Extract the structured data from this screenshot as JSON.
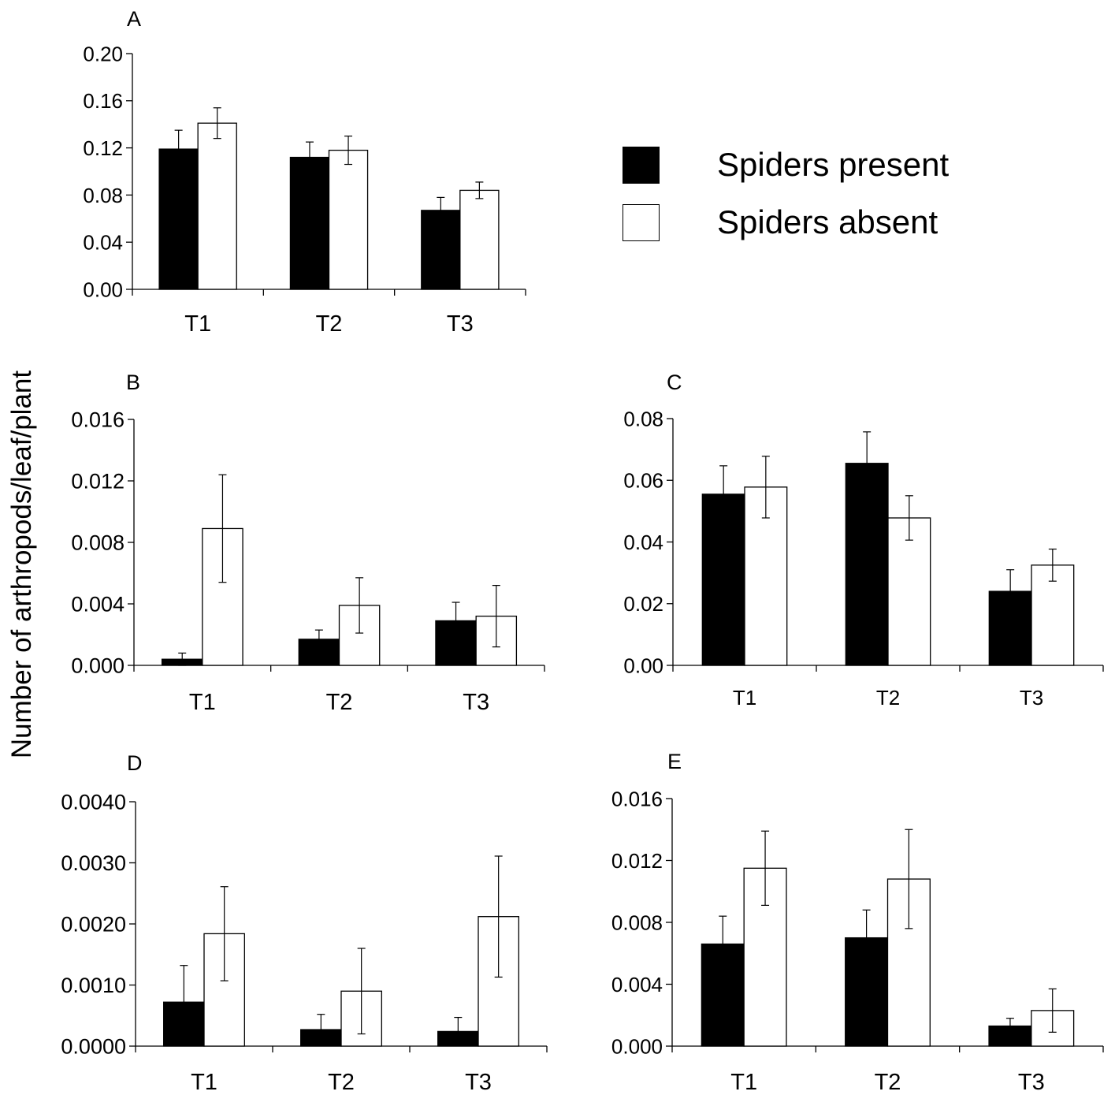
{
  "ylabel": "Number of arthropods/leaf/plant",
  "legend": {
    "items": [
      {
        "label": "Spiders present",
        "color": "#000000"
      },
      {
        "label": "Spiders absent",
        "color": "#ffffff"
      }
    ]
  },
  "chart_data": [
    {
      "type": "bar",
      "panel": "A",
      "categories": [
        "T1",
        "T2",
        "T3"
      ],
      "series": [
        {
          "name": "Spiders present",
          "values": [
            0.119,
            0.112,
            0.067
          ],
          "errors": [
            0.016,
            0.013,
            0.011
          ]
        },
        {
          "name": "Spiders absent",
          "values": [
            0.141,
            0.118,
            0.084
          ],
          "errors": [
            0.013,
            0.012,
            0.007
          ]
        }
      ],
      "ylim": [
        0,
        0.2
      ],
      "yticks": [
        "0.00",
        "0.04",
        "0.08",
        "0.12",
        "0.16",
        "0.20"
      ],
      "grid": false
    },
    {
      "type": "bar",
      "panel": "B",
      "categories": [
        "T1",
        "T2",
        "T3"
      ],
      "series": [
        {
          "name": "Spiders present",
          "values": [
            0.0004,
            0.0017,
            0.0029
          ],
          "errors": [
            0.0004,
            0.0006,
            0.0012
          ]
        },
        {
          "name": "Spiders absent",
          "values": [
            0.0089,
            0.0039,
            0.0032
          ],
          "errors": [
            0.0035,
            0.0018,
            0.002
          ]
        }
      ],
      "ylim": [
        0,
        0.016
      ],
      "yticks": [
        "0.000",
        "0.004",
        "0.008",
        "0.012",
        "0.016"
      ],
      "grid": false
    },
    {
      "type": "bar",
      "panel": "C",
      "categories": [
        "T1",
        "T2",
        "T3"
      ],
      "series": [
        {
          "name": "Spiders present",
          "values": [
            0.0555,
            0.0655,
            0.024
          ],
          "errors": [
            0.0092,
            0.0102,
            0.007
          ]
        },
        {
          "name": "Spiders absent",
          "values": [
            0.0578,
            0.0478,
            0.0325
          ],
          "errors": [
            0.01,
            0.0072,
            0.0052
          ]
        }
      ],
      "ylim": [
        0,
        0.08
      ],
      "yticks": [
        "0.00",
        "0.02",
        "0.04",
        "0.06",
        "0.08"
      ],
      "grid": false
    },
    {
      "type": "bar",
      "panel": "D",
      "categories": [
        "T1",
        "T2",
        "T3"
      ],
      "series": [
        {
          "name": "Spiders present",
          "values": [
            0.00072,
            0.00027,
            0.00024
          ],
          "errors": [
            0.0006,
            0.00025,
            0.00023
          ]
        },
        {
          "name": "Spiders absent",
          "values": [
            0.00184,
            0.0009,
            0.00212
          ],
          "errors": [
            0.00077,
            0.0007,
            0.00099
          ]
        }
      ],
      "ylim": [
        0,
        0.004
      ],
      "yticks": [
        "0.0000",
        "0.0010",
        "0.0020",
        "0.0030",
        "0.0040"
      ],
      "grid": false
    },
    {
      "type": "bar",
      "panel": "E",
      "categories": [
        "T1",
        "T2",
        "T3"
      ],
      "series": [
        {
          "name": "Spiders present",
          "values": [
            0.0066,
            0.007,
            0.0013
          ],
          "errors": [
            0.0018,
            0.0018,
            0.0005
          ]
        },
        {
          "name": "Spiders absent",
          "values": [
            0.0115,
            0.0108,
            0.0023
          ],
          "errors": [
            0.0024,
            0.0032,
            0.0014
          ]
        }
      ],
      "ylim": [
        0,
        0.016
      ],
      "yticks": [
        "0.000",
        "0.004",
        "0.008",
        "0.012",
        "0.016"
      ],
      "grid": false
    }
  ]
}
